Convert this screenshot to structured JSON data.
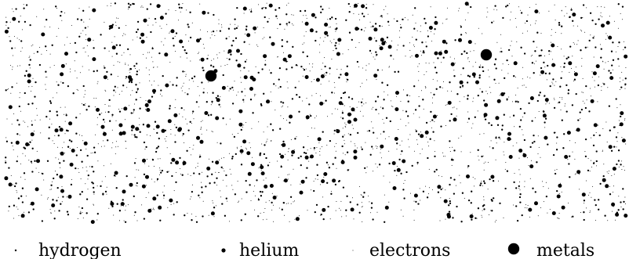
{
  "diagram": {
    "particle_types": [
      {
        "key": "hydrogen",
        "label": "hydrogen",
        "color": "#000000",
        "relative_size": "small dot",
        "abundance": "very many"
      },
      {
        "key": "helium",
        "label": "helium",
        "color": "#000000",
        "relative_size": "medium dot",
        "abundance": "many"
      },
      {
        "key": "electrons",
        "label": "electrons",
        "color": "#000000",
        "relative_size": "tiny dot",
        "abundance": "very many"
      },
      {
        "key": "metals",
        "label": "metals",
        "color": "#000000",
        "relative_size": "large dot",
        "abundance": "two"
      }
    ]
  }
}
